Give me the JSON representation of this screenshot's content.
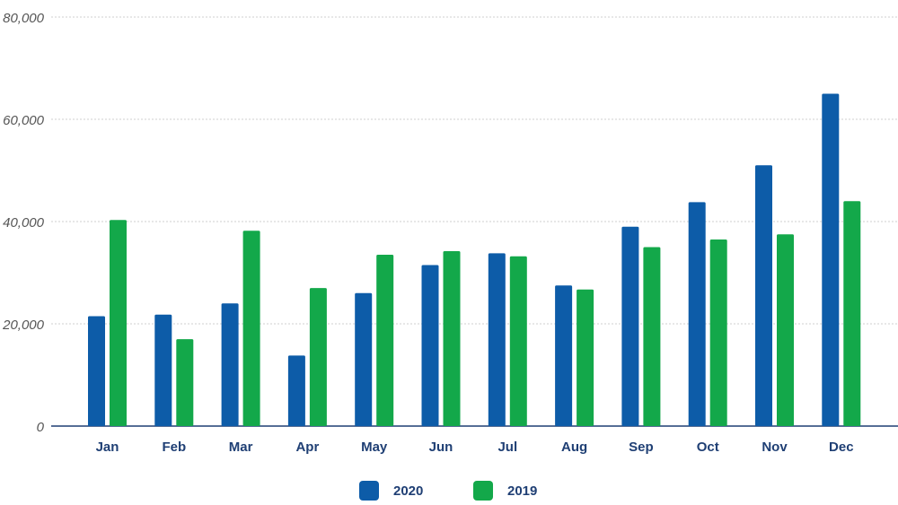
{
  "chart_data": {
    "type": "bar",
    "categories": [
      "Jan",
      "Feb",
      "Mar",
      "Apr",
      "May",
      "Jun",
      "Jul",
      "Aug",
      "Sep",
      "Oct",
      "Nov",
      "Dec"
    ],
    "series": [
      {
        "name": "2020",
        "color": "#0d5ca8",
        "values": [
          21500,
          21800,
          24000,
          13800,
          26000,
          31500,
          33800,
          27500,
          39000,
          43800,
          51000,
          65000
        ]
      },
      {
        "name": "2019",
        "color": "#13a84a",
        "values": [
          40300,
          17000,
          38200,
          27000,
          33500,
          34200,
          33200,
          26700,
          35000,
          36500,
          37500,
          44000
        ]
      }
    ],
    "y_ticks": [
      "0",
      "20,000",
      "40,000",
      "60,000",
      "80,000"
    ],
    "ylim": [
      0,
      80000
    ],
    "grid": true,
    "legend_position": "bottom-center"
  }
}
